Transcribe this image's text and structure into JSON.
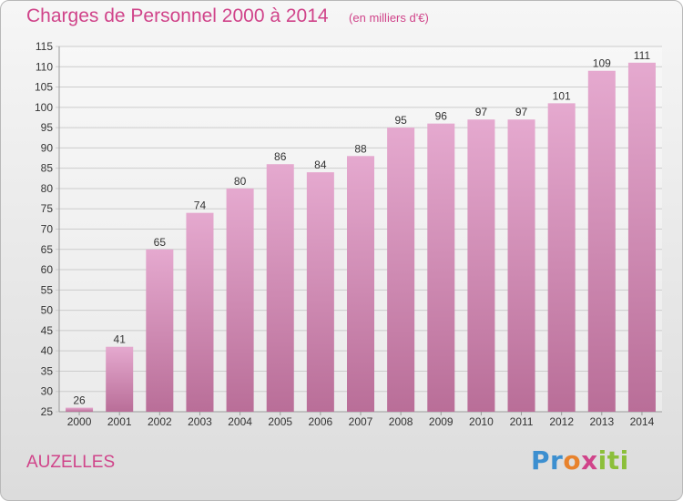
{
  "colors": {
    "accent": "#d0448a",
    "bar_top": "#e5a9cf",
    "bar_bottom": "#b96e98",
    "grid": "#cccccc"
  },
  "header": {
    "title": "Charges de Personnel 2000 à 2014",
    "subtitle": "(en milliers d'€)"
  },
  "footer": {
    "city": "AUZELLES",
    "logo_text": "Proxiti",
    "logo_icon": "proxiti-logo"
  },
  "chart_data": {
    "type": "bar",
    "title": "Charges de Personnel 2000 à 2014",
    "subtitle": "(en milliers d'€)",
    "xlabel": "",
    "ylabel": "",
    "categories": [
      "2000",
      "2001",
      "2002",
      "2003",
      "2004",
      "2005",
      "2006",
      "2007",
      "2008",
      "2009",
      "2010",
      "2011",
      "2012",
      "2013",
      "2014"
    ],
    "values": [
      26,
      41,
      65,
      74,
      80,
      86,
      84,
      88,
      95,
      96,
      97,
      97,
      101,
      109,
      111
    ],
    "ylim": [
      25,
      115
    ],
    "yticks": [
      25,
      30,
      35,
      40,
      45,
      50,
      55,
      60,
      65,
      70,
      75,
      80,
      85,
      90,
      95,
      100,
      105,
      110,
      115
    ],
    "grid": true,
    "legend": "none"
  }
}
